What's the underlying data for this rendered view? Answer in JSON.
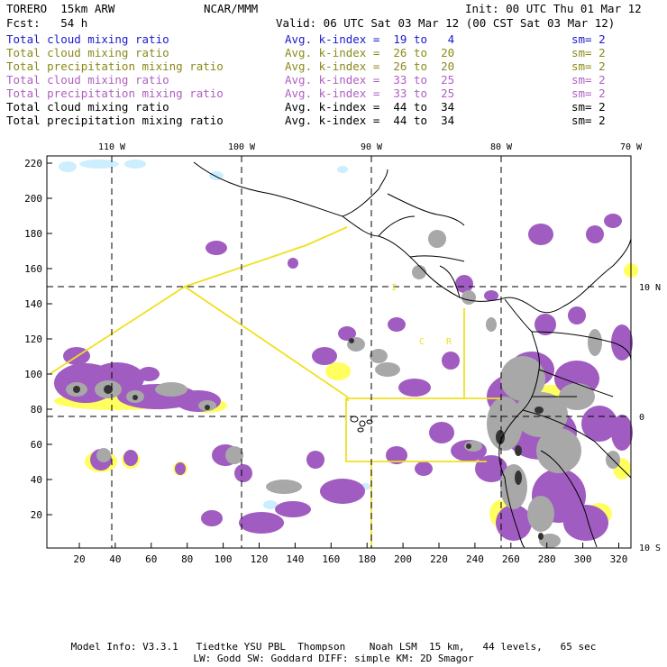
{
  "header": {
    "model": "TORERO  15km ARW",
    "center": "NCAR/MMM",
    "init": "Init: 00 UTC Thu 01 Mar 12",
    "fcst": "Fcst:   54 h",
    "valid": "Valid: 06 UTC Sat 03 Mar 12 (00 CST Sat 03 Mar 12)"
  },
  "legend": [
    {
      "field": "Total cloud mixing ratio",
      "index": "Avg. k-index =  19 to   4",
      "sm": "sm= 2",
      "color": "#1a1acc"
    },
    {
      "field": "Total cloud mixing ratio",
      "index": "Avg. k-index =  26 to  20",
      "sm": "sm= 2",
      "color": "#8a8a1a"
    },
    {
      "field": "Total precipitation mixing ratio",
      "index": "Avg. k-index =  26 to  20",
      "sm": "sm= 2",
      "color": "#8a8a1a"
    },
    {
      "field": "Total cloud mixing ratio",
      "index": "Avg. k-index =  33 to  25",
      "sm": "sm= 2",
      "color": "#b060c0"
    },
    {
      "field": "Total precipitation mixing ratio",
      "index": "Avg. k-index =  33 to  25",
      "sm": "sm= 2",
      "color": "#b060c0"
    },
    {
      "field": "Total cloud mixing ratio",
      "index": "Avg. k-index =  44 to  34",
      "sm": "sm= 2",
      "color": "#000000"
    },
    {
      "field": "Total precipitation mixing ratio",
      "index": "Avg. k-index =  44 to  34",
      "sm": "sm= 2",
      "color": "#000000"
    }
  ],
  "map": {
    "lon_labels": [
      "110 W",
      "100 W",
      "90 W",
      "80 W",
      "70 W"
    ],
    "lat_labels": [
      "10 N",
      "0",
      "10 S"
    ],
    "y_ticks": [
      "220",
      "200",
      "180",
      "160",
      "140",
      "120",
      "100",
      "80",
      "60",
      "40",
      "20"
    ],
    "x_ticks": [
      "20",
      "40",
      "60",
      "80",
      "100",
      "120",
      "140",
      "160",
      "180",
      "200",
      "220",
      "240",
      "260",
      "280",
      "300",
      "320"
    ],
    "region_labels": [
      "I",
      "C",
      "R"
    ],
    "colors": {
      "purple": "#a05cc0",
      "gray": "#a8a8a8",
      "yellow": "#ffff60",
      "boundary": "#f0e020",
      "cyan": "#cceeff"
    }
  },
  "footer": {
    "line1": "Model Info: V3.3.1   Tiedtke YSU PBL  Thompson    Noah LSM  15 km,   44 levels,   65 sec",
    "line2": "LW: Godd SW: Goddard DIFF: simple KM: 2D Smagor"
  }
}
